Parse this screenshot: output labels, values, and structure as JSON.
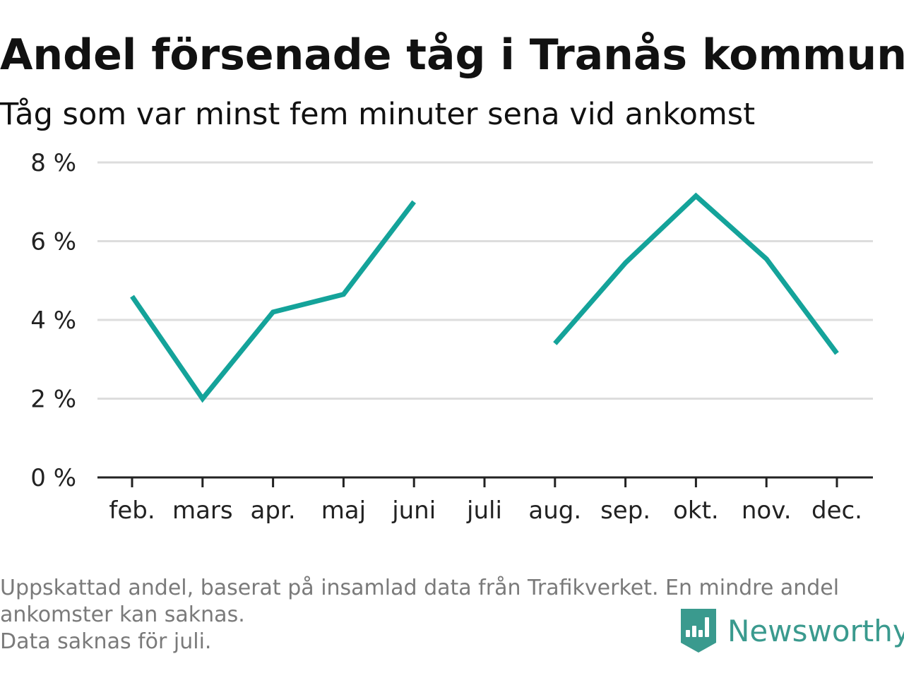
{
  "header": {
    "title": "Andel försenade tåg i Tranås kommun",
    "subtitle": "Tåg som var minst fem minuter sena vid ankomst"
  },
  "footnote": {
    "line1": "Uppskattad andel, baserat på insamlad data från Trafikverket. En mindre andel",
    "line2": "ankomster kan saknas.",
    "line3": "Data saknas för juli."
  },
  "logo": {
    "text": "Newsworthy",
    "icon": "newsworthy-logo-icon",
    "color": "#3a9a8e"
  },
  "colors": {
    "line": "#14a39a",
    "grid": "#dddddd",
    "axis": "#222222"
  },
  "chart_data": {
    "type": "line",
    "title": "Andel försenade tåg i Tranås kommun",
    "subtitle": "Tåg som var minst fem minuter sena vid ankomst",
    "xlabel": "",
    "ylabel": "",
    "categories": [
      "feb.",
      "mars",
      "apr.",
      "maj",
      "juni",
      "juli",
      "aug.",
      "sep.",
      "okt.",
      "nov.",
      "dec."
    ],
    "series": [
      {
        "values": [
          4.6,
          2.0,
          4.2,
          4.65,
          7.0,
          null,
          3.4,
          5.45,
          7.15,
          5.55,
          3.15
        ]
      }
    ],
    "ylim": [
      0,
      8
    ],
    "yticks": [
      0,
      2,
      4,
      6,
      8
    ],
    "ytick_labels": [
      "0 %",
      "2 %",
      "4 %",
      "6 %",
      "8 %"
    ],
    "grid": true,
    "legend": "none"
  }
}
